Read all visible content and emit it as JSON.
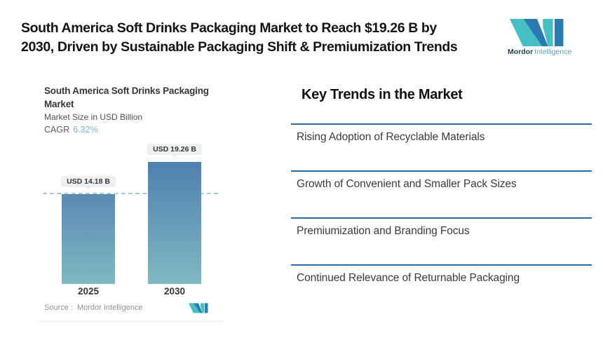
{
  "header": {
    "title_line1": "South America Soft Drinks Packaging Market to Reach $19.26 B by",
    "title_line2": "2030, Driven by Sustainable Packaging Shift & Premiumization Trends",
    "logo": {
      "brand_bold": "Mordor",
      "brand_light": "Intelligence"
    }
  },
  "chart": {
    "title_lines": [
      "South America Soft Drinks Packaging",
      "Market"
    ],
    "subtitle": "Market Size in USD Billion",
    "cagr_label": "CAGR",
    "cagr_value": "6.32%",
    "source_label": "Source :",
    "source_value": "Mordor Intelligence"
  },
  "chart_data": {
    "type": "bar",
    "title": "South America Soft Drinks Packaging Market",
    "ylabel": "Market Size in USD Billion",
    "cagr_pct": 6.32,
    "categories": [
      "2025",
      "2030"
    ],
    "values": [
      14.18,
      19.26
    ],
    "bar_labels": [
      "USD 14.18 B",
      "USD 19.26 B"
    ],
    "reference_line": 14.18,
    "ylim": [
      0,
      19.26
    ],
    "grid": false,
    "legend": "none",
    "colors": {
      "bar_top": "#4e80af",
      "bar_bottom": "#7fb9c2",
      "dashed_line": "#a7c8de"
    }
  },
  "trends": {
    "heading": "Key Trends in the Market",
    "items": [
      "Rising Adoption of Recyclable Materials",
      "Growth of Convenient and Smaller Pack Sizes",
      "Premiumization and Branding Focus",
      "Continued Relevance of Returnable Packaging"
    ],
    "divider_color": "#2a6d9e"
  },
  "colors": {
    "logo_teal": "#45bfc3",
    "logo_blue": "#2b7ab3",
    "cagr_value_color": "#7fb3d9"
  }
}
